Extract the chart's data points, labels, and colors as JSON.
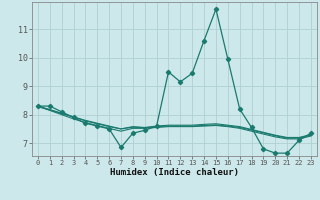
{
  "title": "",
  "xlabel": "Humidex (Indice chaleur)",
  "background_color": "#cce8ea",
  "grid_color": "#b0d0d2",
  "line_color": "#1a7a6e",
  "xlim": [
    -0.5,
    23.5
  ],
  "ylim": [
    6.55,
    11.95
  ],
  "x": [
    0,
    1,
    2,
    3,
    4,
    5,
    6,
    7,
    8,
    9,
    10,
    11,
    12,
    13,
    14,
    15,
    16,
    17,
    18,
    19,
    20,
    21,
    22,
    23
  ],
  "y_main": [
    8.3,
    8.3,
    8.1,
    7.9,
    7.7,
    7.6,
    7.5,
    6.85,
    7.35,
    7.45,
    7.6,
    9.5,
    9.15,
    9.45,
    10.6,
    11.7,
    9.95,
    8.2,
    7.55,
    6.8,
    6.65,
    6.65,
    7.1,
    7.35
  ],
  "y_line2": [
    8.3,
    8.15,
    8.0,
    7.85,
    7.72,
    7.62,
    7.52,
    7.42,
    7.52,
    7.52,
    7.55,
    7.58,
    7.58,
    7.58,
    7.6,
    7.62,
    7.58,
    7.52,
    7.42,
    7.32,
    7.22,
    7.15,
    7.15,
    7.25
  ],
  "y_line3": [
    8.3,
    8.18,
    8.05,
    7.92,
    7.78,
    7.68,
    7.58,
    7.5,
    7.58,
    7.55,
    7.6,
    7.63,
    7.63,
    7.63,
    7.66,
    7.68,
    7.63,
    7.58,
    7.48,
    7.38,
    7.28,
    7.2,
    7.2,
    7.3
  ],
  "y_line4": [
    8.28,
    8.16,
    8.04,
    7.92,
    7.8,
    7.7,
    7.6,
    7.5,
    7.56,
    7.54,
    7.58,
    7.6,
    7.6,
    7.6,
    7.62,
    7.64,
    7.6,
    7.55,
    7.46,
    7.36,
    7.26,
    7.18,
    7.18,
    7.28
  ],
  "yticks": [
    7,
    8,
    9,
    10,
    11
  ],
  "xticks": [
    0,
    1,
    2,
    3,
    4,
    5,
    6,
    7,
    8,
    9,
    10,
    11,
    12,
    13,
    14,
    15,
    16,
    17,
    18,
    19,
    20,
    21,
    22,
    23
  ]
}
